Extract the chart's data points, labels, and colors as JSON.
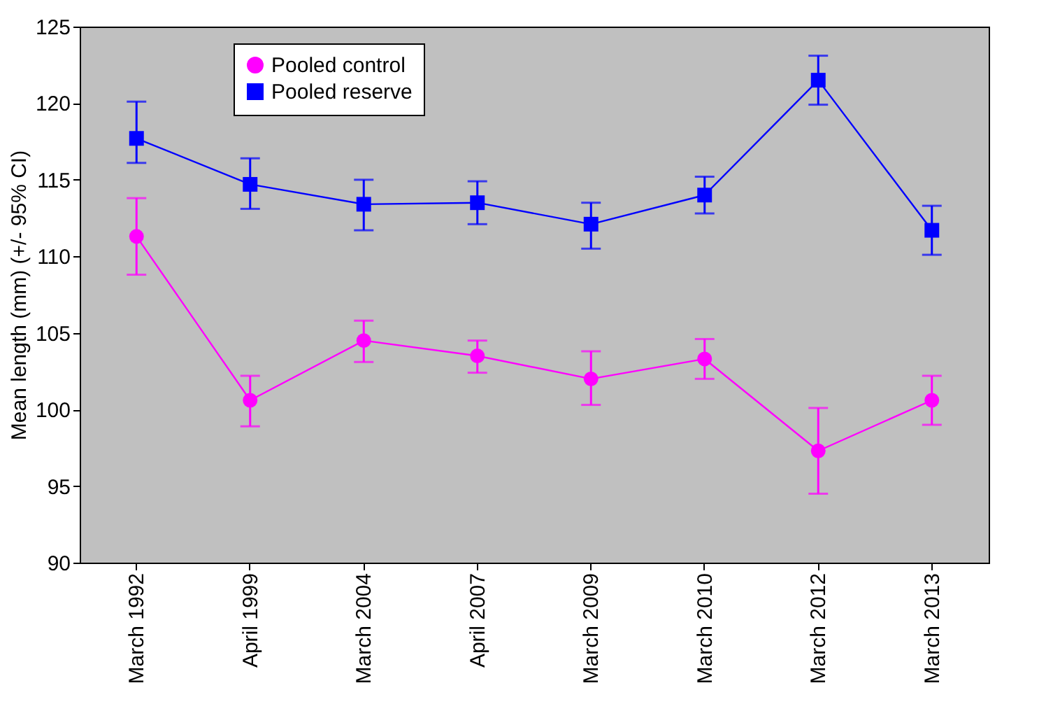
{
  "chart_data": {
    "type": "line",
    "ylabel": "Mean length (mm) (+/- 95% CI)",
    "categories": [
      "March 1992",
      "April 1999",
      "March 2004",
      "April 2007",
      "March 2009",
      "March 2010",
      "March 2012",
      "March 2013"
    ],
    "series": [
      {
        "name": "Pooled control",
        "color": "#ff00ff",
        "marker": "circle",
        "values": [
          111.3,
          100.6,
          104.5,
          103.5,
          102.0,
          103.3,
          97.3,
          100.6
        ],
        "errors": [
          [
            108.8,
            113.8
          ],
          [
            98.9,
            102.2
          ],
          [
            103.1,
            105.8
          ],
          [
            102.4,
            104.5
          ],
          [
            100.3,
            103.8
          ],
          [
            102.0,
            104.6
          ],
          [
            94.5,
            100.1
          ],
          [
            99.0,
            102.2
          ]
        ]
      },
      {
        "name": "Pooled reserve",
        "color": "#0000ff",
        "marker": "square",
        "values": [
          117.7,
          114.7,
          113.4,
          113.5,
          112.1,
          114.0,
          121.5,
          111.7
        ],
        "errors": [
          [
            116.1,
            120.1
          ],
          [
            113.1,
            116.4
          ],
          [
            111.7,
            115.0
          ],
          [
            112.1,
            114.9
          ],
          [
            110.5,
            113.5
          ],
          [
            112.8,
            115.2
          ],
          [
            119.9,
            123.1
          ],
          [
            110.1,
            113.3
          ]
        ]
      }
    ],
    "ylim": [
      90,
      125
    ],
    "yticks": [
      90,
      95,
      100,
      105,
      110,
      115,
      120,
      125
    ],
    "grid": false,
    "legend": "top left",
    "line_style": "solid"
  }
}
